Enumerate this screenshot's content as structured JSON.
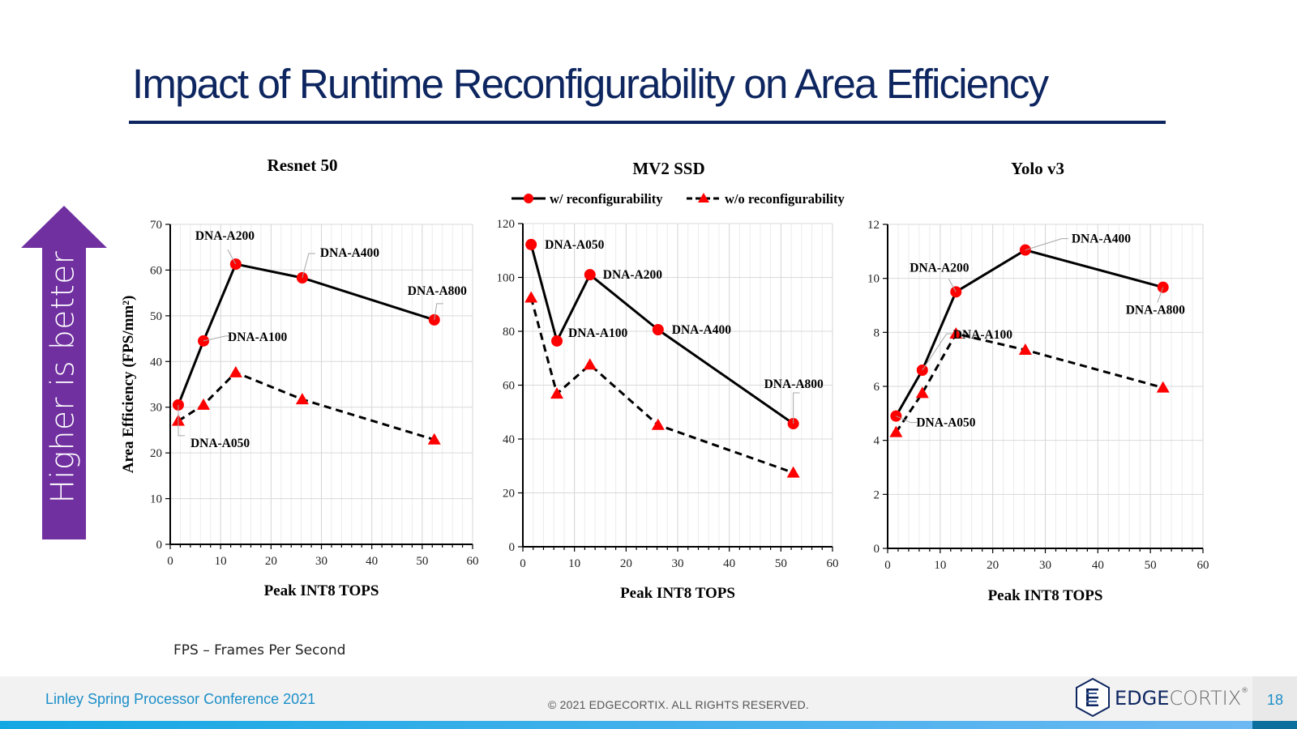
{
  "slide": {
    "title": "Impact of Runtime Reconfigurability on Area Efficiency",
    "side_arrow_text": "Higher is better",
    "footnote": "FPS – Frames Per Second",
    "footer_left": "Linley Spring Processor Conference 2021",
    "footer_center": "© 2021 EDGECORTIX. ALL RIGHTS RESERVED.",
    "logo_text_a": "EDGE",
    "logo_text_b": "CORTIX",
    "logo_reg": "®",
    "logo_icon": "edgecortix-hexagon-icon",
    "page_number": "18",
    "colors": {
      "title": "#0e2660",
      "arrow": "#7030a0",
      "marker": "#ff0000",
      "footer_text": "#1a8ec8"
    }
  },
  "legend": {
    "series_a": "w/ reconfigurability",
    "series_b": "w/o reconfigurability"
  },
  "chart_data": [
    {
      "type": "line",
      "title": "Resnet 50",
      "xlabel": "Peak INT8 TOPS",
      "ylabel": "Area Efficiency  (FPS/mm²)",
      "xlim": [
        0,
        60
      ],
      "ylim": [
        0,
        70
      ],
      "xticks": [
        0,
        10,
        20,
        30,
        40,
        50,
        60
      ],
      "yticks": [
        0,
        10,
        20,
        30,
        40,
        50,
        60,
        70
      ],
      "grid": true,
      "x": [
        1.6,
        6.6,
        13.0,
        26.2,
        52.4
      ],
      "point_labels": [
        "DNA-A050",
        "DNA-A100",
        "DNA-A200",
        "DNA-A400",
        "DNA-A800"
      ],
      "series": [
        {
          "name": "w/ reconfigurability",
          "values": [
            30.5,
            44.5,
            61.3,
            58.3,
            49.1
          ]
        },
        {
          "name": "w/o reconfigurability",
          "values": [
            27.0,
            30.5,
            37.6,
            31.7,
            22.9
          ]
        }
      ]
    },
    {
      "type": "line",
      "title": "MV2 SSD",
      "xlabel": "Peak INT8 TOPS",
      "ylabel": "",
      "xlim": [
        0,
        60
      ],
      "ylim": [
        0,
        120
      ],
      "xticks": [
        0,
        10,
        20,
        30,
        40,
        50,
        60
      ],
      "yticks": [
        0,
        20,
        40,
        60,
        80,
        100,
        120
      ],
      "grid": true,
      "legend": "top",
      "x": [
        1.6,
        6.6,
        13.0,
        26.2,
        52.4
      ],
      "point_labels": [
        "DNA-A050",
        "DNA-A100",
        "DNA-A200",
        "DNA-A400",
        "DNA-A800"
      ],
      "series": [
        {
          "name": "w/ reconfigurability",
          "values": [
            112.2,
            76.4,
            101.0,
            80.6,
            45.7
          ]
        },
        {
          "name": "w/o reconfigurability",
          "values": [
            92.5,
            56.8,
            67.6,
            45.2,
            27.5
          ]
        }
      ]
    },
    {
      "type": "line",
      "title": "Yolo v3",
      "xlabel": "Peak INT8 TOPS",
      "ylabel": "",
      "xlim": [
        0,
        60
      ],
      "ylim": [
        0,
        12
      ],
      "xticks": [
        0,
        10,
        20,
        30,
        40,
        50,
        60
      ],
      "yticks": [
        0,
        2,
        4,
        6,
        8,
        10,
        12
      ],
      "grid": true,
      "x": [
        1.6,
        6.6,
        13.0,
        26.2,
        52.4
      ],
      "point_labels": [
        "DNA-A050",
        "DNA-A100",
        "DNA-A200",
        "DNA-A400",
        "DNA-A800"
      ],
      "series": [
        {
          "name": "w/ reconfigurability",
          "values": [
            4.9,
            6.6,
            9.5,
            11.05,
            9.67
          ]
        },
        {
          "name": "w/o reconfigurability",
          "values": [
            4.3,
            5.75,
            7.95,
            7.35,
            5.95
          ]
        }
      ]
    }
  ]
}
